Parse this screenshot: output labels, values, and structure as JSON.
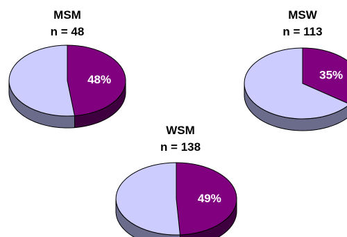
{
  "colors": {
    "highlight_top": "#800080",
    "highlight_side": "#3f0040",
    "rest_top": "#ccccff",
    "rest_side": "#6b6b8c",
    "outline": "#000000",
    "label": "#ffffff"
  },
  "chart_data": [
    {
      "type": "pie",
      "title": "MSM",
      "subtitle": "n = 48",
      "slices": [
        {
          "value": 48,
          "label": "48%",
          "highlighted": true
        },
        {
          "value": 52,
          "label": "",
          "highlighted": false
        }
      ]
    },
    {
      "type": "pie",
      "title": "MSW",
      "subtitle": "n = 113",
      "slices": [
        {
          "value": 35,
          "label": "35%",
          "highlighted": true
        },
        {
          "value": 65,
          "label": "",
          "highlighted": false
        }
      ]
    },
    {
      "type": "pie",
      "title": "WSM",
      "subtitle": "n = 138",
      "slices": [
        {
          "value": 49,
          "label": "49%",
          "highlighted": true
        },
        {
          "value": 51,
          "label": "",
          "highlighted": false
        }
      ]
    }
  ]
}
